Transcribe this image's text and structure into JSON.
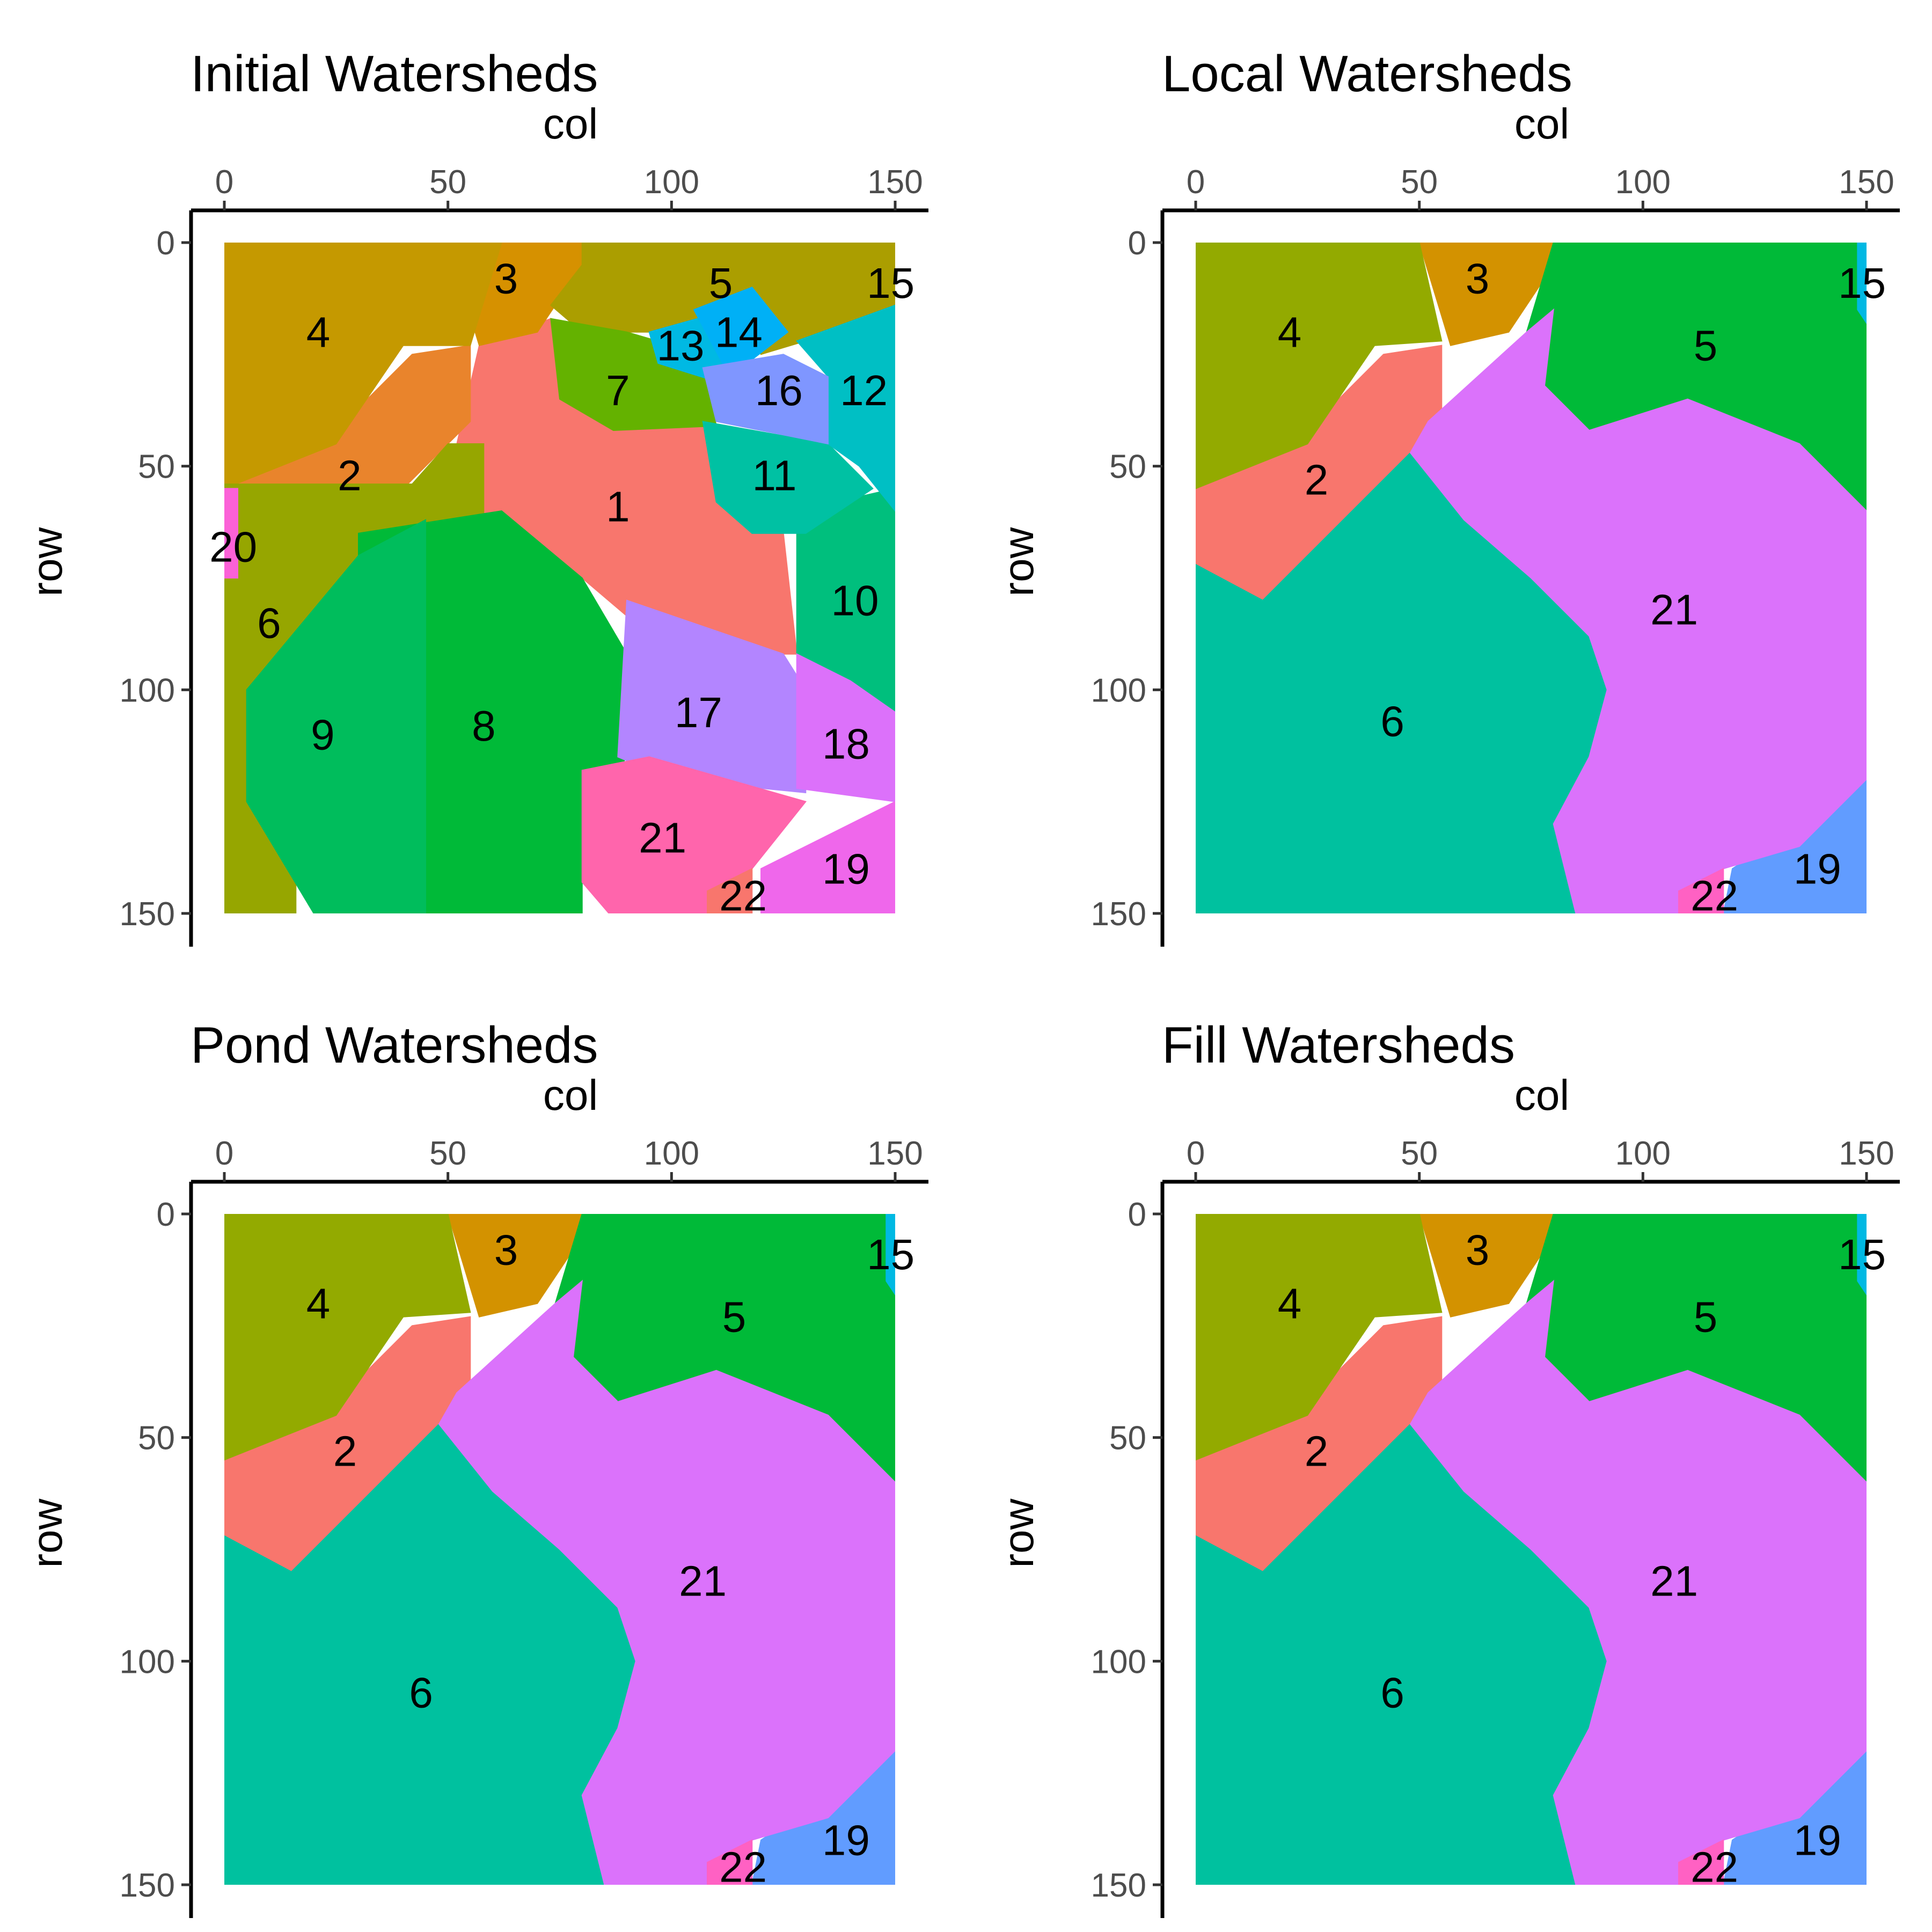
{
  "chart_data": [
    {
      "type": "heatmap",
      "title": "Initial Watersheds",
      "xlabel": "col",
      "ylabel": "row",
      "xlim": [
        0,
        150
      ],
      "ylim": [
        0,
        150
      ],
      "x_ticks": [
        "0",
        "50",
        "100",
        "150"
      ],
      "y_ticks": [
        "0",
        "50",
        "100",
        "150"
      ],
      "x_axis_position": "top",
      "y_axis_reversed": true,
      "grid": false,
      "regions": [
        {
          "id": "1",
          "color": "#F8766D",
          "label_col": 88,
          "label_row": 59
        },
        {
          "id": "2",
          "color": "#E9842C",
          "label_col": 28,
          "label_row": 52
        },
        {
          "id": "3",
          "color": "#D69100",
          "label_col": 63,
          "label_row": 8
        },
        {
          "id": "4",
          "color": "#C59900",
          "label_col": 21,
          "label_row": 20
        },
        {
          "id": "5",
          "color": "#AB9E00",
          "label_col": 111,
          "label_row": 9
        },
        {
          "id": "6",
          "color": "#96A600",
          "label_col": 10,
          "label_row": 85
        },
        {
          "id": "7",
          "color": "#64B200",
          "label_col": 88,
          "label_row": 33
        },
        {
          "id": "8",
          "color": "#00BA38",
          "label_col": 58,
          "label_row": 108
        },
        {
          "id": "9",
          "color": "#00BD5C",
          "label_col": 22,
          "label_row": 110
        },
        {
          "id": "10",
          "color": "#00BF7D",
          "label_col": 141,
          "label_row": 80
        },
        {
          "id": "11",
          "color": "#00C1A3",
          "label_col": 123,
          "label_row": 52
        },
        {
          "id": "12",
          "color": "#00BFC4",
          "label_col": 143,
          "label_row": 33
        },
        {
          "id": "13",
          "color": "#00B9E3",
          "label_col": 102,
          "label_row": 23
        },
        {
          "id": "14",
          "color": "#00B0F6",
          "label_col": 115,
          "label_row": 20
        },
        {
          "id": "15",
          "color": "#00A5FF",
          "label_col": 149,
          "label_row": 9
        },
        {
          "id": "16",
          "color": "#7F96FF",
          "label_col": 124,
          "label_row": 33
        },
        {
          "id": "17",
          "color": "#B385FF",
          "label_col": 106,
          "label_row": 105
        },
        {
          "id": "18",
          "color": "#DC71FA",
          "label_col": 139,
          "label_row": 112
        },
        {
          "id": "19",
          "color": "#EF67EB",
          "label_col": 139,
          "label_row": 140
        },
        {
          "id": "20",
          "color": "#FB61D7",
          "label_col": 2,
          "label_row": 68
        },
        {
          "id": "21",
          "color": "#FF65AC",
          "label_col": 98,
          "label_row": 133
        },
        {
          "id": "22",
          "color": "#F8766D",
          "label_col": 116,
          "label_row": 146
        }
      ]
    },
    {
      "type": "heatmap",
      "title": "Local Watersheds",
      "xlabel": "col",
      "ylabel": "row",
      "xlim": [
        0,
        150
      ],
      "ylim": [
        0,
        150
      ],
      "x_ticks": [
        "0",
        "50",
        "100",
        "150"
      ],
      "y_ticks": [
        "0",
        "50",
        "100",
        "150"
      ],
      "x_axis_position": "top",
      "y_axis_reversed": true,
      "grid": false,
      "regions": [
        {
          "id": "2",
          "color": "#F8766D",
          "label_col": 27,
          "label_row": 53
        },
        {
          "id": "3",
          "color": "#D39200",
          "label_col": 63,
          "label_row": 8
        },
        {
          "id": "4",
          "color": "#93AA00",
          "label_col": 21,
          "label_row": 20
        },
        {
          "id": "5",
          "color": "#00BA38",
          "label_col": 114,
          "label_row": 23
        },
        {
          "id": "6",
          "color": "#00C19F",
          "label_col": 44,
          "label_row": 107
        },
        {
          "id": "15",
          "color": "#00B9E3",
          "label_col": 149,
          "label_row": 9
        },
        {
          "id": "19",
          "color": "#619CFF",
          "label_col": 139,
          "label_row": 140
        },
        {
          "id": "21",
          "color": "#DB72FB",
          "label_col": 107,
          "label_row": 82
        },
        {
          "id": "22",
          "color": "#FF61C3",
          "label_col": 116,
          "label_row": 146
        }
      ]
    },
    {
      "type": "heatmap",
      "title": "Pond Watersheds",
      "xlabel": "col",
      "ylabel": "row",
      "xlim": [
        0,
        150
      ],
      "ylim": [
        0,
        150
      ],
      "x_ticks": [
        "0",
        "50",
        "100",
        "150"
      ],
      "y_ticks": [
        "0",
        "50",
        "100",
        "150"
      ],
      "x_axis_position": "top",
      "y_axis_reversed": true,
      "grid": false,
      "regions": [
        {
          "id": "2",
          "color": "#F8766D",
          "label_col": 27,
          "label_row": 53
        },
        {
          "id": "3",
          "color": "#D39200",
          "label_col": 63,
          "label_row": 8
        },
        {
          "id": "4",
          "color": "#93AA00",
          "label_col": 21,
          "label_row": 20
        },
        {
          "id": "5",
          "color": "#00BA38",
          "label_col": 114,
          "label_row": 23
        },
        {
          "id": "6",
          "color": "#00C19F",
          "label_col": 44,
          "label_row": 107
        },
        {
          "id": "15",
          "color": "#00B9E3",
          "label_col": 149,
          "label_row": 9
        },
        {
          "id": "19",
          "color": "#619CFF",
          "label_col": 139,
          "label_row": 140
        },
        {
          "id": "21",
          "color": "#DB72FB",
          "label_col": 107,
          "label_row": 82
        },
        {
          "id": "22",
          "color": "#FF61C3",
          "label_col": 116,
          "label_row": 146
        }
      ]
    },
    {
      "type": "heatmap",
      "title": "Fill Watersheds",
      "xlabel": "col",
      "ylabel": "row",
      "xlim": [
        0,
        150
      ],
      "ylim": [
        0,
        150
      ],
      "x_ticks": [
        "0",
        "50",
        "100",
        "150"
      ],
      "y_ticks": [
        "0",
        "50",
        "100",
        "150"
      ],
      "x_axis_position": "top",
      "y_axis_reversed": true,
      "grid": false,
      "regions": [
        {
          "id": "2",
          "color": "#F8766D",
          "label_col": 27,
          "label_row": 53
        },
        {
          "id": "3",
          "color": "#D39200",
          "label_col": 63,
          "label_row": 8
        },
        {
          "id": "4",
          "color": "#93AA00",
          "label_col": 21,
          "label_row": 20
        },
        {
          "id": "5",
          "color": "#00BA38",
          "label_col": 114,
          "label_row": 23
        },
        {
          "id": "6",
          "color": "#00C19F",
          "label_col": 44,
          "label_row": 107
        },
        {
          "id": "15",
          "color": "#00B9E3",
          "label_col": 149,
          "label_row": 9
        },
        {
          "id": "19",
          "color": "#619CFF",
          "label_col": 139,
          "label_row": 140
        },
        {
          "id": "21",
          "color": "#DB72FB",
          "label_col": 107,
          "label_row": 82
        },
        {
          "id": "22",
          "color": "#FF61C3",
          "label_col": 116,
          "label_row": 146
        }
      ]
    }
  ]
}
